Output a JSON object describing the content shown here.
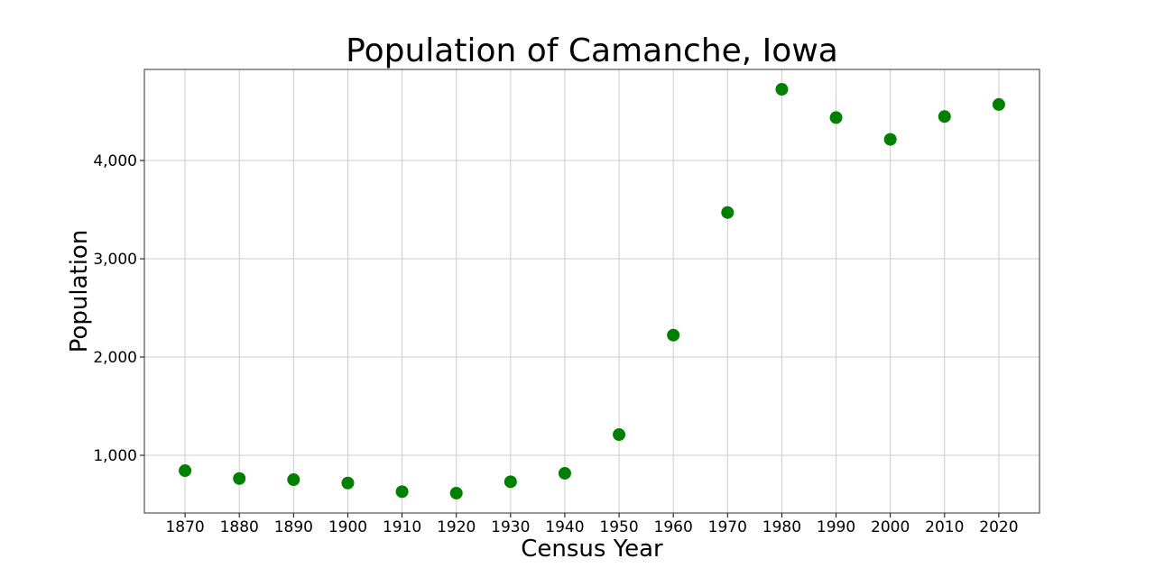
{
  "chart_data": {
    "type": "scatter",
    "title": "Population of Camanche, Iowa",
    "xlabel": "Census Year",
    "ylabel": "Population",
    "x": [
      1870,
      1880,
      1890,
      1900,
      1910,
      1920,
      1930,
      1940,
      1950,
      1960,
      1970,
      1980,
      1990,
      2000,
      2010,
      2020
    ],
    "series": [
      {
        "name": "Population",
        "color": "#008000",
        "values": [
          844,
          764,
          752,
          718,
          630,
          615,
          731,
          817,
          1211,
          2223,
          3471,
          4725,
          4437,
          4215,
          4448,
          4570
        ]
      }
    ],
    "xticks": [
      "1870",
      "1880",
      "1890",
      "1900",
      "1910",
      "1920",
      "1930",
      "1940",
      "1950",
      "1960",
      "1970",
      "1980",
      "1990",
      "2000",
      "2010",
      "2020"
    ],
    "yticks": [
      1000,
      2000,
      3000,
      4000
    ],
    "ytick_labels": [
      "1,000",
      "2,000",
      "3,000",
      "4,000"
    ],
    "xlim": [
      1862.5,
      2027.5
    ],
    "ylim": [
      413,
      4927
    ],
    "grid": true,
    "legend": null
  }
}
